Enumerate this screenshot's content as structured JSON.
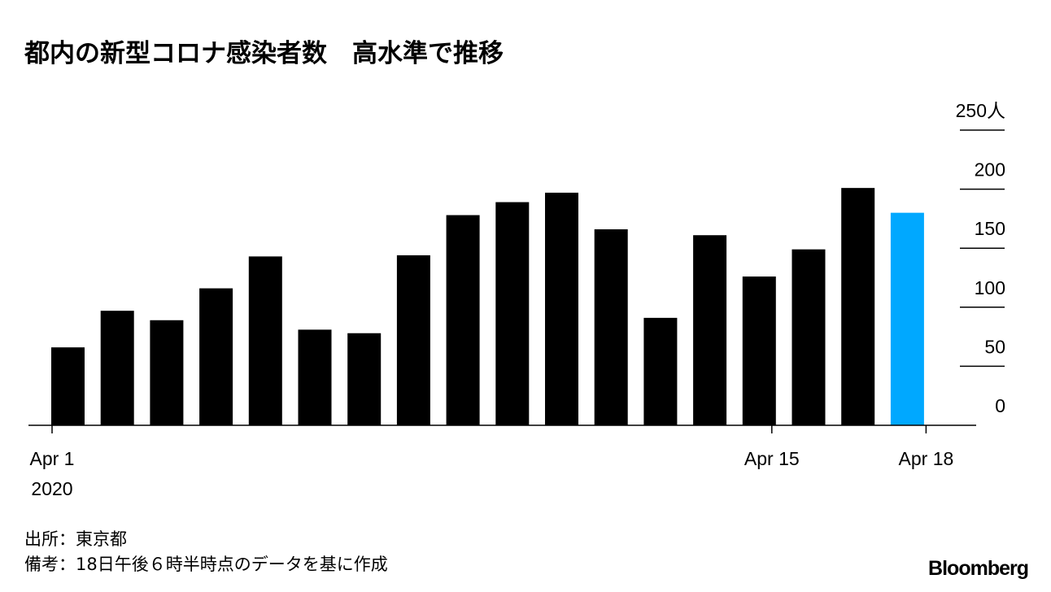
{
  "chart_data": {
    "type": "bar",
    "title": "都内の新型コロナ感染者数　高水準で推移",
    "categories": [
      "Apr 1",
      "Apr 2",
      "Apr 3",
      "Apr 4",
      "Apr 5",
      "Apr 6",
      "Apr 7",
      "Apr 8",
      "Apr 9",
      "Apr 10",
      "Apr 11",
      "Apr 12",
      "Apr 13",
      "Apr 14",
      "Apr 15",
      "Apr 16",
      "Apr 17",
      "Apr 18"
    ],
    "values": [
      66,
      97,
      89,
      116,
      143,
      81,
      78,
      144,
      178,
      189,
      197,
      166,
      91,
      161,
      126,
      149,
      201,
      180
    ],
    "highlight_index": 17,
    "colors": {
      "default": "#000000",
      "highlight": "#00a8ff"
    },
    "ylim": [
      0,
      250
    ],
    "yticks": [
      "0",
      "50",
      "100",
      "150",
      "200",
      "250人"
    ],
    "ytick_values": [
      0,
      50,
      100,
      150,
      200,
      250
    ],
    "xticks": [
      {
        "day": 1,
        "label": "Apr 1",
        "sub": "2020"
      },
      {
        "day": 15,
        "label": "Apr 15"
      },
      {
        "day": 18,
        "label": "Apr 18"
      }
    ],
    "grid": true,
    "y_axis_side": "right"
  },
  "footer": {
    "source": "出所：東京都",
    "note": "備考：18日午後６時半時点のデータを基に作成",
    "logo": "Bloomberg"
  }
}
